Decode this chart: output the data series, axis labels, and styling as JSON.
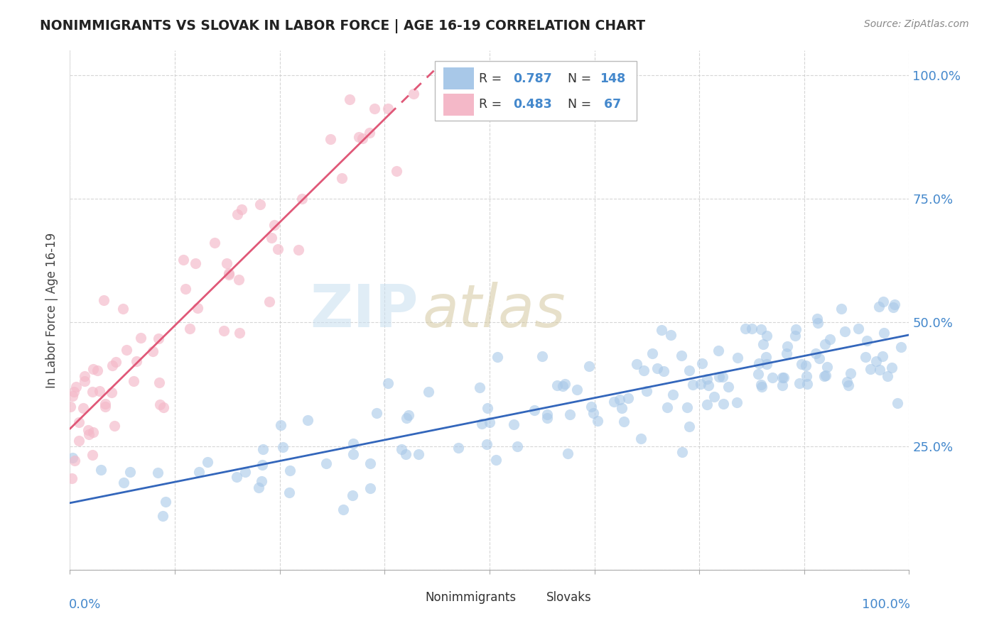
{
  "title": "NONIMMIGRANTS VS SLOVAK IN LABOR FORCE | AGE 16-19 CORRELATION CHART",
  "source": "Source: ZipAtlas.com",
  "ylabel": "In Labor Force | Age 16-19",
  "xlim": [
    0.0,
    1.0
  ],
  "ylim": [
    0.0,
    1.05
  ],
  "blue_color": "#a8c8e8",
  "pink_color": "#f4b8c8",
  "blue_line_color": "#3366bb",
  "pink_line_color": "#e05878",
  "trend_blue_x0": 0.0,
  "trend_blue_y0": 0.135,
  "trend_blue_x1": 1.0,
  "trend_blue_y1": 0.475,
  "trend_pink_solid_x0": 0.0,
  "trend_pink_solid_y0": 0.285,
  "trend_pink_solid_x1": 0.38,
  "trend_pink_solid_y1": 0.92,
  "trend_pink_dash_x0": 0.38,
  "trend_pink_dash_y0": 0.92,
  "trend_pink_dash_x1": 0.44,
  "trend_pink_dash_y1": 1.02,
  "blue_R": "0.787",
  "blue_N": "148",
  "pink_R": "0.483",
  "pink_N": "67",
  "watermark_zip_color": "#c8dff0",
  "watermark_atlas_color": "#d4c8a0",
  "grid_color": "#cccccc",
  "axis_label_color": "#4488cc",
  "title_color": "#222222",
  "source_color": "#888888"
}
